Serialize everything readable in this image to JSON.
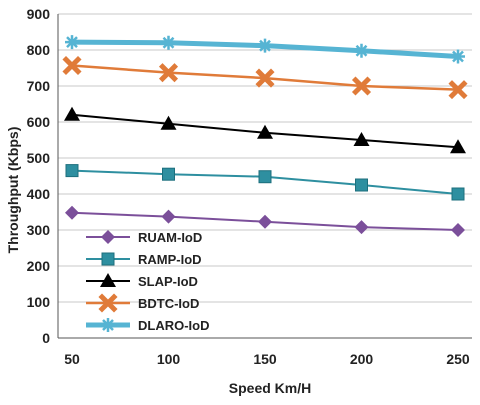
{
  "chart_data": {
    "type": "line",
    "title": "",
    "xlabel": "Speed Km/H",
    "ylabel": "Throughput (Kbps)",
    "x": [
      50,
      100,
      150,
      200,
      250
    ],
    "xlim": [
      50,
      250
    ],
    "ylim": [
      0,
      900
    ],
    "yticks": [
      0,
      100,
      200,
      300,
      400,
      500,
      600,
      700,
      800,
      900
    ],
    "grid": "horizontal",
    "legend_position": "bottom-left",
    "series": [
      {
        "name": "RUAM-IoD",
        "values": [
          348,
          337,
          323,
          308,
          300
        ],
        "color": "#7b4f9a",
        "marker": "diamond"
      },
      {
        "name": "RAMP-IoD",
        "values": [
          465,
          455,
          448,
          425,
          400
        ],
        "color": "#2e8fa0",
        "marker": "square"
      },
      {
        "name": "SLAP-IoD",
        "values": [
          620,
          595,
          570,
          550,
          530
        ],
        "color": "#000000",
        "marker": "triangle"
      },
      {
        "name": "BDTC-IoD",
        "values": [
          757,
          737,
          722,
          700,
          690
        ],
        "color": "#e07b39",
        "marker": "x"
      },
      {
        "name": "DLARO-IoD",
        "values": [
          822,
          820,
          812,
          798,
          782
        ],
        "color": "#56b4d3",
        "marker": "star"
      }
    ]
  }
}
